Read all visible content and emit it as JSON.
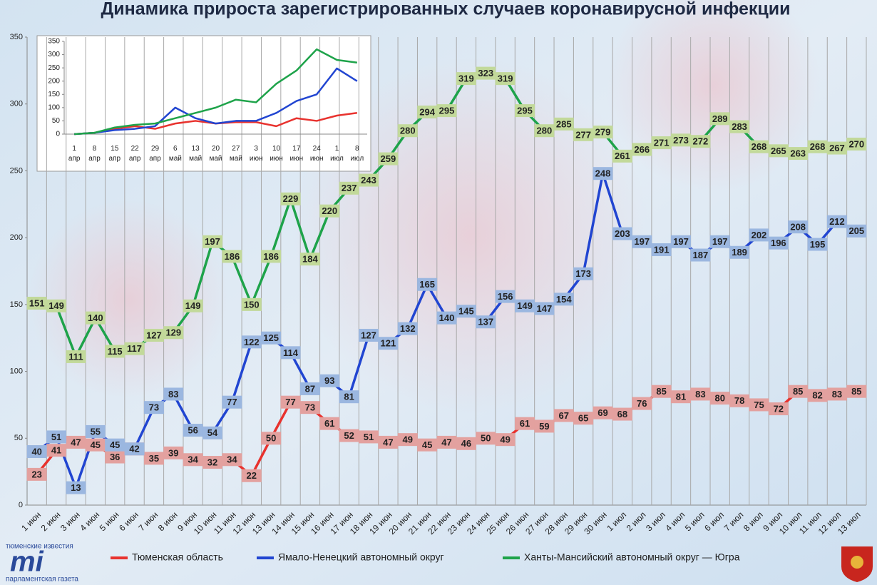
{
  "chart_data": [
    {
      "type": "line",
      "title": "Динамика прироста зарегистрированных случаев коронавирусной инфекции",
      "categories": [
        "1 июн",
        "2 июн",
        "3 июн",
        "4 июн",
        "5 июн",
        "6 июн",
        "7 июн",
        "8 июн",
        "9 июн",
        "10 июн",
        "11 июн",
        "12 июн",
        "13 июн",
        "14 июн",
        "15 июн",
        "16 июн",
        "17 июн",
        "18 июн",
        "19 июн",
        "20 июн",
        "21 июн",
        "22 июн",
        "23 июн",
        "24 июн",
        "25 июн",
        "26 июн",
        "27 июн",
        "28 июн",
        "29 июн",
        "30 июн",
        "1 июл",
        "2 июл",
        "3 июл",
        "4 июл",
        "5 июл",
        "6 июл",
        "7 июл",
        "8 июл",
        "9 июл",
        "10 июл",
        "11 июл",
        "12 июл",
        "13 июл"
      ],
      "series": [
        {
          "name": "Тюменская область",
          "color": "#e8322e",
          "label_color": "#e3a19f",
          "values": [
            23,
            41,
            47,
            45,
            36,
            42,
            35,
            39,
            34,
            32,
            34,
            22,
            50,
            77,
            73,
            61,
            52,
            51,
            47,
            49,
            45,
            47,
            46,
            50,
            49,
            61,
            59,
            67,
            65,
            69,
            68,
            76,
            85,
            81,
            83,
            80,
            78,
            75,
            72,
            85,
            82,
            83,
            85
          ]
        },
        {
          "name": "Ямало-Ненецкий автономный округ",
          "color": "#2145d1",
          "label_color": "#9bb7e0",
          "values": [
            40,
            51,
            13,
            55,
            45,
            42,
            73,
            83,
            56,
            54,
            77,
            122,
            125,
            114,
            87,
            93,
            81,
            127,
            121,
            132,
            165,
            140,
            145,
            137,
            156,
            149,
            147,
            154,
            173,
            248,
            203,
            197,
            191,
            197,
            187,
            197,
            189,
            202,
            196,
            208,
            195,
            212,
            205
          ]
        },
        {
          "name": "Ханты-Мансийский автономный округ — Югра",
          "color": "#1ea34a",
          "label_color": "#c2d99a",
          "values": [
            151,
            149,
            111,
            140,
            115,
            117,
            127,
            129,
            149,
            197,
            186,
            150,
            186,
            229,
            184,
            220,
            237,
            243,
            259,
            280,
            294,
            295,
            319,
            323,
            319,
            295,
            280,
            285,
            277,
            279,
            261,
            266,
            271,
            273,
            272,
            289,
            283,
            268,
            265,
            263,
            268,
            267,
            270
          ]
        }
      ],
      "ylim": [
        0,
        350
      ],
      "yticks": [
        0,
        50,
        100,
        150,
        200,
        250,
        300,
        350
      ],
      "grid": true,
      "data_labels": true
    },
    {
      "type": "line",
      "categories": [
        "1 апр",
        "8 апр",
        "15 апр",
        "22 апр",
        "29 апр",
        "6 май",
        "13 май",
        "20 май",
        "27 май",
        "3 июн",
        "10 июн",
        "17 июн",
        "24 июн",
        "1 июл",
        "8 июл"
      ],
      "series": [
        {
          "color": "#e8322e",
          "values": [
            0,
            5,
            20,
            30,
            20,
            40,
            50,
            40,
            45,
            45,
            30,
            60,
            50,
            70,
            80
          ]
        },
        {
          "color": "#2145d1",
          "values": [
            0,
            5,
            15,
            20,
            30,
            100,
            60,
            40,
            50,
            50,
            80,
            125,
            150,
            248,
            200
          ]
        },
        {
          "color": "#1ea34a",
          "values": [
            0,
            5,
            25,
            35,
            40,
            60,
            80,
            100,
            130,
            120,
            190,
            240,
            320,
            280,
            270
          ]
        }
      ],
      "ylim": [
        0,
        350
      ],
      "yticks": [
        0,
        50,
        100,
        150,
        200,
        250,
        300,
        350
      ],
      "grid": false,
      "data_labels": false
    }
  ],
  "logo": {
    "top": "тюменские известия",
    "mark": "mi",
    "bottom": "парламентская газета"
  }
}
